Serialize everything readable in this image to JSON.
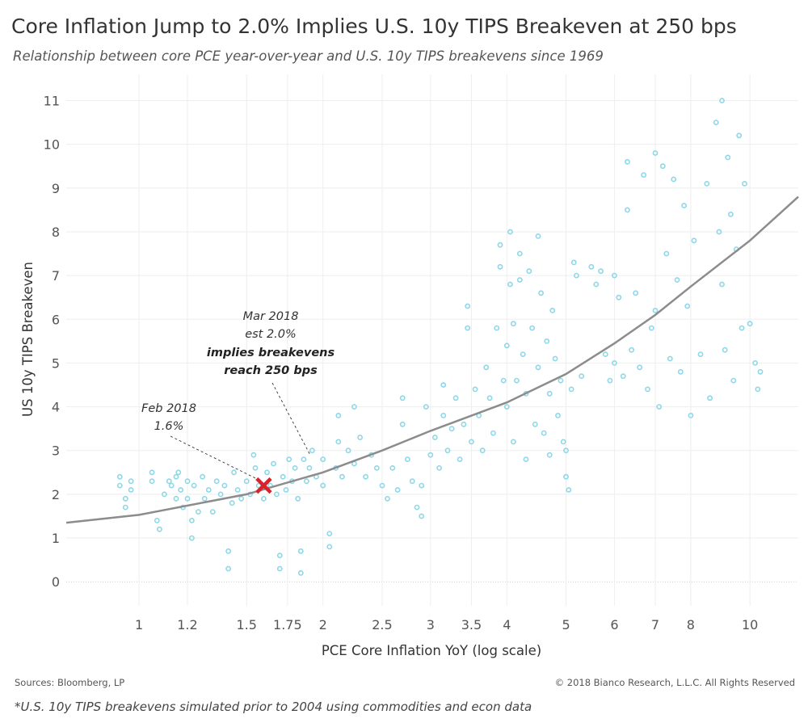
{
  "header": {
    "title": "Core Inflation Jump to 2.0% Implies U.S. 10y TIPS Breakeven at 250 bps",
    "subtitle": "Relationship between core PCE year-over-year and U.S. 10y TIPS breakevens since 1969"
  },
  "footer": {
    "sources": "Sources: Bloomberg, LP",
    "copyright": "© 2018 Bianco Research, L.L.C. All Rights Reserved",
    "note": "*U.S. 10y TIPS breakevens simulated prior to 2004 using commodities and econ data"
  },
  "colors": {
    "points": "#8dd8e6",
    "trend": "#8c8c8c",
    "marker": "#d9222a",
    "grid": "#eeeeee"
  },
  "chart_data": {
    "type": "scatter",
    "xlabel": "PCE Core Inflation YoY (log scale)",
    "ylabel": "US 10y TIPS Breakeven",
    "x_scale": "log",
    "xlim": [
      0.76,
      12.0
    ],
    "ylim": [
      -0.55,
      11.6
    ],
    "x_ticks": [
      1,
      1.2,
      1.5,
      1.75,
      2,
      2.5,
      3,
      3.5,
      4,
      5,
      6,
      7,
      8,
      10
    ],
    "x_tick_labels": [
      "1",
      "1.2",
      "1.5",
      "1.75",
      "2",
      "2.5",
      "3",
      "3.5",
      "4",
      "5",
      "6",
      "7",
      "8",
      "10"
    ],
    "y_ticks": [
      0,
      1,
      2,
      3,
      4,
      5,
      6,
      7,
      8,
      9,
      10,
      11
    ],
    "y_tick_labels": [
      "0",
      "1",
      "2",
      "3",
      "4",
      "5",
      "6",
      "7",
      "8",
      "9",
      "10",
      "11"
    ],
    "grid": true,
    "trendline": {
      "type": "exponential",
      "points": [
        {
          "x": 0.76,
          "y": 1.35
        },
        {
          "x": 1.0,
          "y": 1.53
        },
        {
          "x": 1.5,
          "y": 2.0
        },
        {
          "x": 2.0,
          "y": 2.5
        },
        {
          "x": 2.5,
          "y": 3.0
        },
        {
          "x": 3.0,
          "y": 3.45
        },
        {
          "x": 4.0,
          "y": 4.1
        },
        {
          "x": 5.0,
          "y": 4.75
        },
        {
          "x": 6.0,
          "y": 5.45
        },
        {
          "x": 7.0,
          "y": 6.1
        },
        {
          "x": 8.0,
          "y": 6.75
        },
        {
          "x": 10.0,
          "y": 7.8
        },
        {
          "x": 12.0,
          "y": 8.8
        }
      ]
    },
    "series": [
      {
        "points": [
          [
            0.93,
            2.4
          ],
          [
            0.93,
            2.2
          ],
          [
            0.95,
            1.9
          ],
          [
            0.95,
            1.7
          ],
          [
            0.97,
            2.3
          ],
          [
            0.97,
            2.1
          ],
          [
            1.05,
            2.5
          ],
          [
            1.05,
            2.3
          ],
          [
            1.07,
            1.4
          ],
          [
            1.08,
            1.2
          ],
          [
            1.1,
            2.0
          ],
          [
            1.12,
            2.3
          ],
          [
            1.13,
            2.2
          ],
          [
            1.15,
            2.4
          ],
          [
            1.15,
            1.9
          ],
          [
            1.16,
            2.5
          ],
          [
            1.17,
            2.1
          ],
          [
            1.18,
            1.7
          ],
          [
            1.2,
            2.3
          ],
          [
            1.2,
            1.9
          ],
          [
            1.22,
            1.0
          ],
          [
            1.22,
            1.4
          ],
          [
            1.23,
            2.2
          ],
          [
            1.25,
            1.6
          ],
          [
            1.27,
            2.4
          ],
          [
            1.28,
            1.9
          ],
          [
            1.3,
            2.1
          ],
          [
            1.32,
            1.6
          ],
          [
            1.34,
            2.3
          ],
          [
            1.36,
            2.0
          ],
          [
            1.38,
            2.2
          ],
          [
            1.4,
            0.3
          ],
          [
            1.4,
            0.7
          ],
          [
            1.42,
            1.8
          ],
          [
            1.43,
            2.5
          ],
          [
            1.45,
            2.1
          ],
          [
            1.47,
            1.9
          ],
          [
            1.5,
            2.3
          ],
          [
            1.52,
            2.0
          ],
          [
            1.54,
            2.9
          ],
          [
            1.55,
            2.6
          ],
          [
            1.57,
            2.2
          ],
          [
            1.6,
            1.9
          ],
          [
            1.62,
            2.5
          ],
          [
            1.64,
            2.2
          ],
          [
            1.66,
            2.7
          ],
          [
            1.68,
            2.0
          ],
          [
            1.7,
            0.3
          ],
          [
            1.7,
            0.6
          ],
          [
            1.72,
            2.4
          ],
          [
            1.74,
            2.1
          ],
          [
            1.76,
            2.8
          ],
          [
            1.78,
            2.3
          ],
          [
            1.8,
            2.6
          ],
          [
            1.82,
            1.9
          ],
          [
            1.84,
            0.2
          ],
          [
            1.84,
            0.7
          ],
          [
            1.86,
            2.8
          ],
          [
            1.88,
            2.3
          ],
          [
            1.9,
            2.6
          ],
          [
            1.92,
            3.0
          ],
          [
            1.95,
            2.4
          ],
          [
            2.0,
            2.8
          ],
          [
            2.0,
            2.2
          ],
          [
            2.05,
            1.1
          ],
          [
            2.05,
            0.8
          ],
          [
            2.1,
            2.6
          ],
          [
            2.12,
            3.8
          ],
          [
            2.12,
            3.2
          ],
          [
            2.15,
            2.4
          ],
          [
            2.2,
            3.0
          ],
          [
            2.25,
            2.7
          ],
          [
            2.25,
            4.0
          ],
          [
            2.3,
            3.3
          ],
          [
            2.35,
            2.4
          ],
          [
            2.4,
            2.9
          ],
          [
            2.45,
            2.6
          ],
          [
            2.5,
            2.2
          ],
          [
            2.55,
            1.9
          ],
          [
            2.6,
            2.6
          ],
          [
            2.65,
            2.1
          ],
          [
            2.7,
            4.2
          ],
          [
            2.7,
            3.6
          ],
          [
            2.75,
            2.8
          ],
          [
            2.8,
            2.3
          ],
          [
            2.85,
            1.7
          ],
          [
            2.9,
            2.2
          ],
          [
            2.9,
            1.5
          ],
          [
            2.95,
            4.0
          ],
          [
            3.0,
            2.9
          ],
          [
            3.05,
            3.3
          ],
          [
            3.1,
            2.6
          ],
          [
            3.15,
            4.5
          ],
          [
            3.15,
            3.8
          ],
          [
            3.2,
            3.0
          ],
          [
            3.25,
            3.5
          ],
          [
            3.3,
            4.2
          ],
          [
            3.35,
            2.8
          ],
          [
            3.4,
            3.6
          ],
          [
            3.45,
            5.8
          ],
          [
            3.45,
            6.3
          ],
          [
            3.5,
            3.2
          ],
          [
            3.55,
            4.4
          ],
          [
            3.6,
            3.8
          ],
          [
            3.65,
            3.0
          ],
          [
            3.7,
            4.9
          ],
          [
            3.75,
            4.2
          ],
          [
            3.8,
            3.4
          ],
          [
            3.85,
            5.8
          ],
          [
            3.9,
            7.2
          ],
          [
            3.9,
            7.7
          ],
          [
            3.95,
            4.6
          ],
          [
            4.0,
            5.4
          ],
          [
            4.0,
            4.0
          ],
          [
            4.05,
            8.0
          ],
          [
            4.05,
            6.8
          ],
          [
            4.1,
            5.9
          ],
          [
            4.1,
            3.2
          ],
          [
            4.15,
            4.6
          ],
          [
            4.2,
            6.9
          ],
          [
            4.2,
            7.5
          ],
          [
            4.25,
            5.2
          ],
          [
            4.3,
            4.3
          ],
          [
            4.3,
            2.8
          ],
          [
            4.35,
            7.1
          ],
          [
            4.4,
            5.8
          ],
          [
            4.45,
            3.6
          ],
          [
            4.5,
            7.9
          ],
          [
            4.5,
            4.9
          ],
          [
            4.55,
            6.6
          ],
          [
            4.6,
            3.4
          ],
          [
            4.65,
            5.5
          ],
          [
            4.7,
            4.3
          ],
          [
            4.7,
            2.9
          ],
          [
            4.75,
            6.2
          ],
          [
            4.8,
            5.1
          ],
          [
            4.85,
            3.8
          ],
          [
            4.9,
            4.6
          ],
          [
            4.95,
            3.2
          ],
          [
            5.0,
            2.4
          ],
          [
            5.0,
            3.0
          ],
          [
            5.05,
            2.1
          ],
          [
            5.1,
            4.4
          ],
          [
            5.15,
            7.3
          ],
          [
            5.2,
            7.0
          ],
          [
            5.3,
            4.7
          ],
          [
            5.5,
            7.2
          ],
          [
            5.6,
            6.8
          ],
          [
            5.7,
            7.1
          ],
          [
            5.8,
            5.2
          ],
          [
            5.9,
            4.6
          ],
          [
            6.0,
            7.0
          ],
          [
            6.0,
            5.0
          ],
          [
            6.1,
            6.5
          ],
          [
            6.2,
            4.7
          ],
          [
            6.3,
            9.6
          ],
          [
            6.3,
            8.5
          ],
          [
            6.4,
            5.3
          ],
          [
            6.5,
            6.6
          ],
          [
            6.6,
            4.9
          ],
          [
            6.7,
            9.3
          ],
          [
            6.8,
            4.4
          ],
          [
            6.9,
            5.8
          ],
          [
            7.0,
            9.8
          ],
          [
            7.0,
            6.2
          ],
          [
            7.1,
            4.0
          ],
          [
            7.2,
            9.5
          ],
          [
            7.3,
            7.5
          ],
          [
            7.4,
            5.1
          ],
          [
            7.5,
            9.2
          ],
          [
            7.6,
            6.9
          ],
          [
            7.7,
            4.8
          ],
          [
            7.8,
            8.6
          ],
          [
            7.9,
            6.3
          ],
          [
            8.0,
            3.8
          ],
          [
            8.1,
            7.8
          ],
          [
            8.3,
            5.2
          ],
          [
            8.5,
            9.1
          ],
          [
            8.6,
            4.2
          ],
          [
            8.8,
            10.5
          ],
          [
            8.9,
            8.0
          ],
          [
            9.0,
            11.0
          ],
          [
            9.0,
            6.8
          ],
          [
            9.1,
            5.3
          ],
          [
            9.2,
            9.7
          ],
          [
            9.3,
            8.4
          ],
          [
            9.4,
            4.6
          ],
          [
            9.5,
            7.6
          ],
          [
            9.6,
            10.2
          ],
          [
            9.7,
            5.8
          ],
          [
            9.8,
            9.1
          ],
          [
            10.0,
            5.9
          ],
          [
            10.2,
            5.0
          ],
          [
            10.3,
            4.4
          ],
          [
            10.4,
            4.8
          ]
        ]
      }
    ],
    "annotations": {
      "feb2018": {
        "x": 1.6,
        "y": 2.2,
        "line1": "Feb 2018",
        "line2": "1.6%"
      },
      "mar2018": {
        "x": 2.0,
        "y": 2.5,
        "line1": "Mar 2018",
        "line2": "est 2.0%",
        "line3": "implies breakevens",
        "line4": "reach 250 bps"
      }
    }
  }
}
